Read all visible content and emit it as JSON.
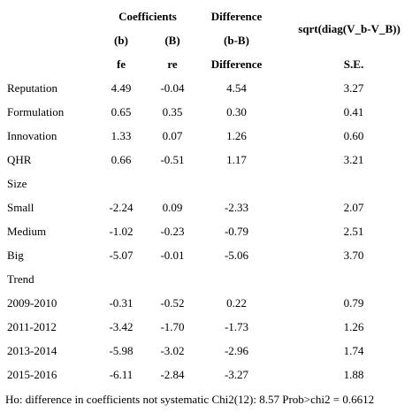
{
  "header": {
    "coefficients": "Coefficients",
    "difference": "Difference",
    "sqrt": "sqrt(diag(V_b-V_B))",
    "b": "(b)",
    "B": "(B)",
    "bB": "(b-B)",
    "fe": "fe",
    "re": "re",
    "difference2": "Difference",
    "se": "S.E."
  },
  "rows": [
    {
      "label": "Reputation",
      "fe": "4.49",
      "re": "-0.04",
      "diff": "4.54",
      "se": "3.27"
    },
    {
      "label": "Formulation",
      "fe": "0.65",
      "re": "0.35",
      "diff": "0.30",
      "se": "0.41"
    },
    {
      "label": "Innovation",
      "fe": "1.33",
      "re": "0.07",
      "diff": "1.26",
      "se": "0.60"
    },
    {
      "label": "QHR",
      "fe": "0.66",
      "re": "-0.51",
      "diff": "1.17",
      "se": "3.21"
    },
    {
      "label": "Size",
      "fe": "",
      "re": "",
      "diff": "",
      "se": ""
    },
    {
      "label": "Small",
      "fe": "-2.24",
      "re": "0.09",
      "diff": "-2.33",
      "se": "2.07"
    },
    {
      "label": "Medium",
      "fe": "-1.02",
      "re": "-0.23",
      "diff": "-0.79",
      "se": "2.51"
    },
    {
      "label": "Big",
      "fe": "-5.07",
      "re": "-0.01",
      "diff": "-5.06",
      "se": "3.70"
    },
    {
      "label": "Trend",
      "fe": "",
      "re": "",
      "diff": "",
      "se": ""
    },
    {
      "label": "2009-2010",
      "fe": "-0.31",
      "re": "-0.52",
      "diff": "0.22",
      "se": "0.79"
    },
    {
      "label": "2011-2012",
      "fe": "-3.42",
      "re": "-1.70",
      "diff": "-1.73",
      "se": "1.26"
    },
    {
      "label": "2013-2014",
      "fe": "-5.98",
      "re": "-3.02",
      "diff": "-2.96",
      "se": "1.74"
    },
    {
      "label": "2015-2016",
      "fe": "-6.11",
      "re": "-2.84",
      "diff": "-3.27",
      "se": "1.88"
    }
  ],
  "footer": "Ho: difference in coefficients not systematic Chi2(12): 8.57 Prob>chi2 = 0.6612"
}
